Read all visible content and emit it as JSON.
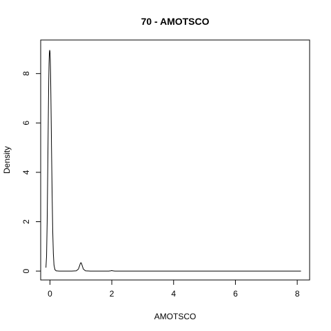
{
  "chart_data": {
    "type": "line",
    "title": "70 - AMOTSCO",
    "xlabel": "AMOTSCO",
    "ylabel": "Density",
    "xlim": [
      -0.3,
      8.4
    ],
    "ylim": [
      -0.36,
      9.36
    ],
    "x_ticks": [
      "0",
      "2",
      "4",
      "6",
      "8"
    ],
    "y_ticks": [
      "0",
      "2",
      "4",
      "6",
      "8"
    ],
    "grid": false,
    "legend": "none",
    "line_color": "#000000",
    "series": [
      {
        "x": [
          -0.13,
          -0.11,
          -0.09,
          -0.07,
          -0.05,
          -0.04,
          -0.03,
          -0.02,
          -0.01,
          0.0,
          0.01,
          0.02,
          0.03,
          0.04,
          0.05,
          0.07,
          0.09,
          0.11,
          0.13,
          0.16,
          0.2,
          0.3,
          0.5,
          0.7,
          0.85,
          0.92,
          0.96,
          0.98,
          1.0,
          1.02,
          1.04,
          1.08,
          1.15,
          1.3,
          1.6,
          1.9,
          1.97,
          2.0,
          2.03,
          2.1,
          2.5,
          3.0,
          4.0,
          5.0,
          6.0,
          7.0,
          8.0,
          8.12
        ],
        "y": [
          0.14,
          0.6,
          2.0,
          4.3,
          6.6,
          7.7,
          8.4,
          8.8,
          8.95,
          8.9,
          8.6,
          8.0,
          7.1,
          6.1,
          5.0,
          3.1,
          1.6,
          0.7,
          0.25,
          0.06,
          0.01,
          0.0,
          0.0,
          0.0,
          0.01,
          0.08,
          0.22,
          0.3,
          0.34,
          0.31,
          0.23,
          0.08,
          0.01,
          0.0,
          0.0,
          0.0,
          0.01,
          0.02,
          0.01,
          0.0,
          0.0,
          0.0,
          0.0,
          0.0,
          0.0,
          0.0,
          0.0,
          0.0
        ]
      }
    ]
  }
}
